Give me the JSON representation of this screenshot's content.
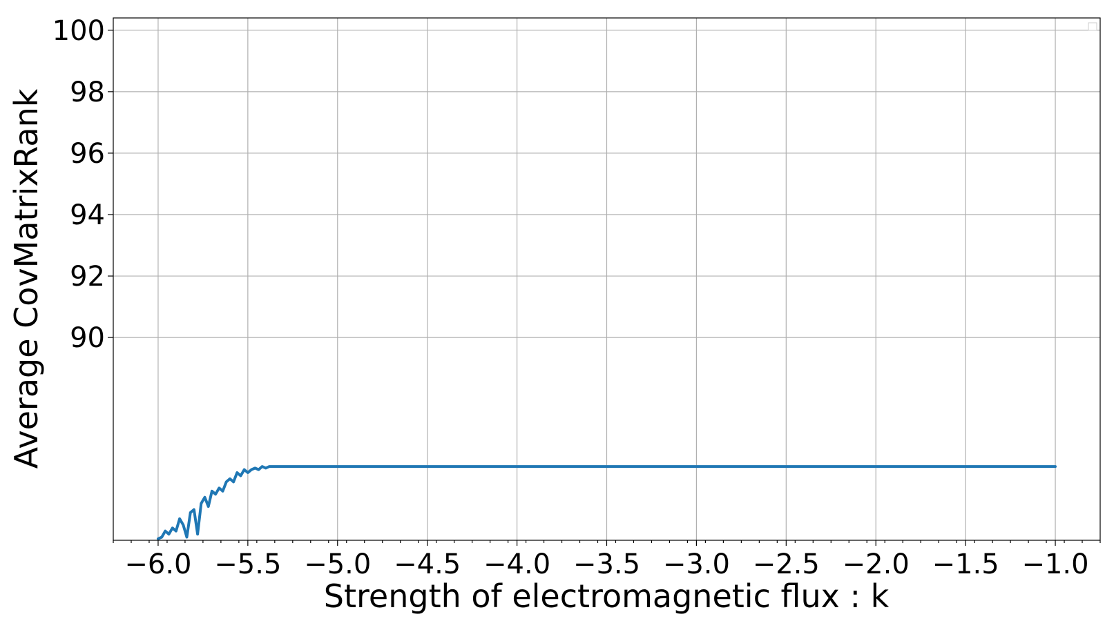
{
  "chart_data": {
    "type": "line",
    "title": "",
    "xlabel": "Strength of electromagnetic flux : k",
    "ylabel": "Average CovMatrixRank",
    "xlim": [
      -6.25,
      -0.75
    ],
    "ylim": [
      83.4,
      100.4
    ],
    "grid": true,
    "legend": "top-right (empty)",
    "x_ticks": [
      {
        "value": -6.0,
        "label": "−6.0"
      },
      {
        "value": -5.5,
        "label": "−5.5"
      },
      {
        "value": -5.0,
        "label": "−5.0"
      },
      {
        "value": -4.5,
        "label": "−4.5"
      },
      {
        "value": -4.0,
        "label": "−4.0"
      },
      {
        "value": -3.5,
        "label": "−3.5"
      },
      {
        "value": -3.0,
        "label": "−3.0"
      },
      {
        "value": -2.5,
        "label": "−2.5"
      },
      {
        "value": -2.0,
        "label": "−2.0"
      },
      {
        "value": -1.5,
        "label": "−1.5"
      },
      {
        "value": -1.0,
        "label": "−1.0"
      }
    ],
    "y_ticks": [
      {
        "value": 90,
        "label": "90"
      },
      {
        "value": 92,
        "label": "92"
      },
      {
        "value": 94,
        "label": "94"
      },
      {
        "value": 96,
        "label": "96"
      },
      {
        "value": 98,
        "label": "98"
      },
      {
        "value": 100,
        "label": "100"
      }
    ],
    "series": [
      {
        "name": "CovMatrixRank",
        "color": "#1f77b4",
        "x": [
          -6.0,
          -5.98,
          -5.96,
          -5.94,
          -5.92,
          -5.9,
          -5.88,
          -5.86,
          -5.84,
          -5.82,
          -5.8,
          -5.78,
          -5.76,
          -5.74,
          -5.72,
          -5.7,
          -5.68,
          -5.66,
          -5.64,
          -5.62,
          -5.6,
          -5.58,
          -5.56,
          -5.54,
          -5.52,
          -5.5,
          -5.48,
          -5.46,
          -5.44,
          -5.42,
          -5.4,
          -5.38,
          -5.35,
          -5.0,
          -4.5,
          -4.0,
          -3.5,
          -3.0,
          -2.5,
          -2.0,
          -1.5,
          -1.0
        ],
        "values": [
          83.45,
          83.5,
          83.7,
          83.6,
          83.8,
          83.7,
          84.1,
          83.9,
          83.5,
          84.3,
          84.4,
          83.6,
          84.6,
          84.8,
          84.5,
          85.0,
          84.9,
          85.1,
          85.0,
          85.3,
          85.4,
          85.3,
          85.6,
          85.5,
          85.7,
          85.6,
          85.7,
          85.75,
          85.7,
          85.8,
          85.75,
          85.8,
          85.8,
          85.8,
          85.8,
          85.8,
          85.8,
          85.8,
          85.8,
          85.8,
          85.8,
          85.8
        ]
      }
    ]
  }
}
